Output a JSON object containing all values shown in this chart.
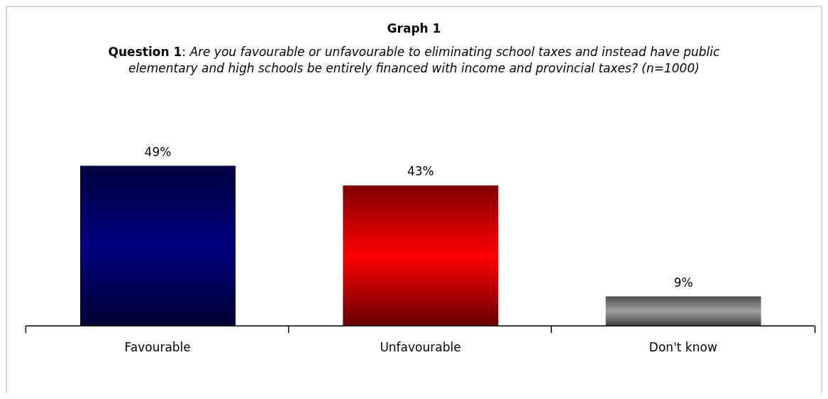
{
  "chart_data": {
    "type": "bar",
    "title": "Graph 1",
    "subtitle": "Question 1: Are you favourable or unfavourable to eliminating school taxes and instead have public elementary and high schools be entirely financed with income and provincial taxes? (n=1000)",
    "categories": [
      "Favourable",
      "Unfavourable",
      "Don't know"
    ],
    "values": [
      49,
      43,
      9
    ],
    "colors": [
      "#000080",
      "#ff0000",
      "#a0a0a0"
    ],
    "value_labels": [
      "49%",
      "43%",
      "9%"
    ]
  }
}
